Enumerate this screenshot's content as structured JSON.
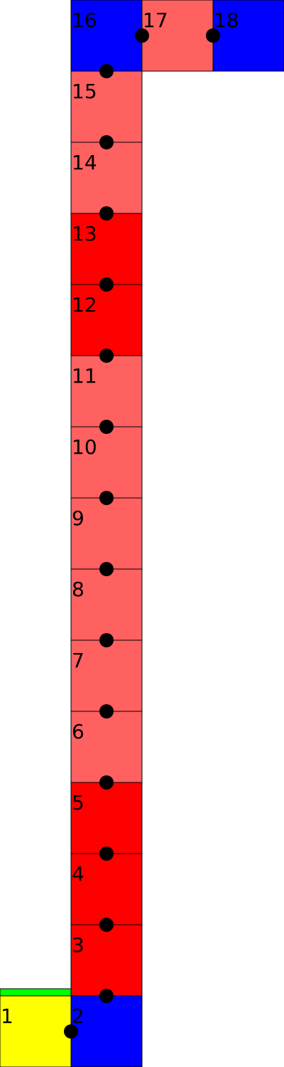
{
  "colors": {
    "blue": "#0000ff",
    "light_red": "#ff6060",
    "red": "#ff0000",
    "yellow": "#ffff00",
    "green": "#00ff00",
    "dot": "#000000",
    "border": "#000000"
  },
  "cells": [
    {
      "label": "1",
      "color": "yellow"
    },
    {
      "label": "2",
      "color": "blue"
    },
    {
      "label": "3",
      "color": "red"
    },
    {
      "label": "4",
      "color": "red"
    },
    {
      "label": "5",
      "color": "red"
    },
    {
      "label": "6",
      "color": "light_red"
    },
    {
      "label": "7",
      "color": "light_red"
    },
    {
      "label": "8",
      "color": "light_red"
    },
    {
      "label": "9",
      "color": "light_red"
    },
    {
      "label": "10",
      "color": "light_red"
    },
    {
      "label": "11",
      "color": "light_red"
    },
    {
      "label": "12",
      "color": "red"
    },
    {
      "label": "13",
      "color": "red"
    },
    {
      "label": "14",
      "color": "light_red"
    },
    {
      "label": "15",
      "color": "light_red"
    },
    {
      "label": "16",
      "color": "blue"
    },
    {
      "label": "17",
      "color": "light_red"
    },
    {
      "label": "18",
      "color": "blue"
    }
  ],
  "start_marker_color": "green",
  "dots_between_consecutive_cells": true
}
